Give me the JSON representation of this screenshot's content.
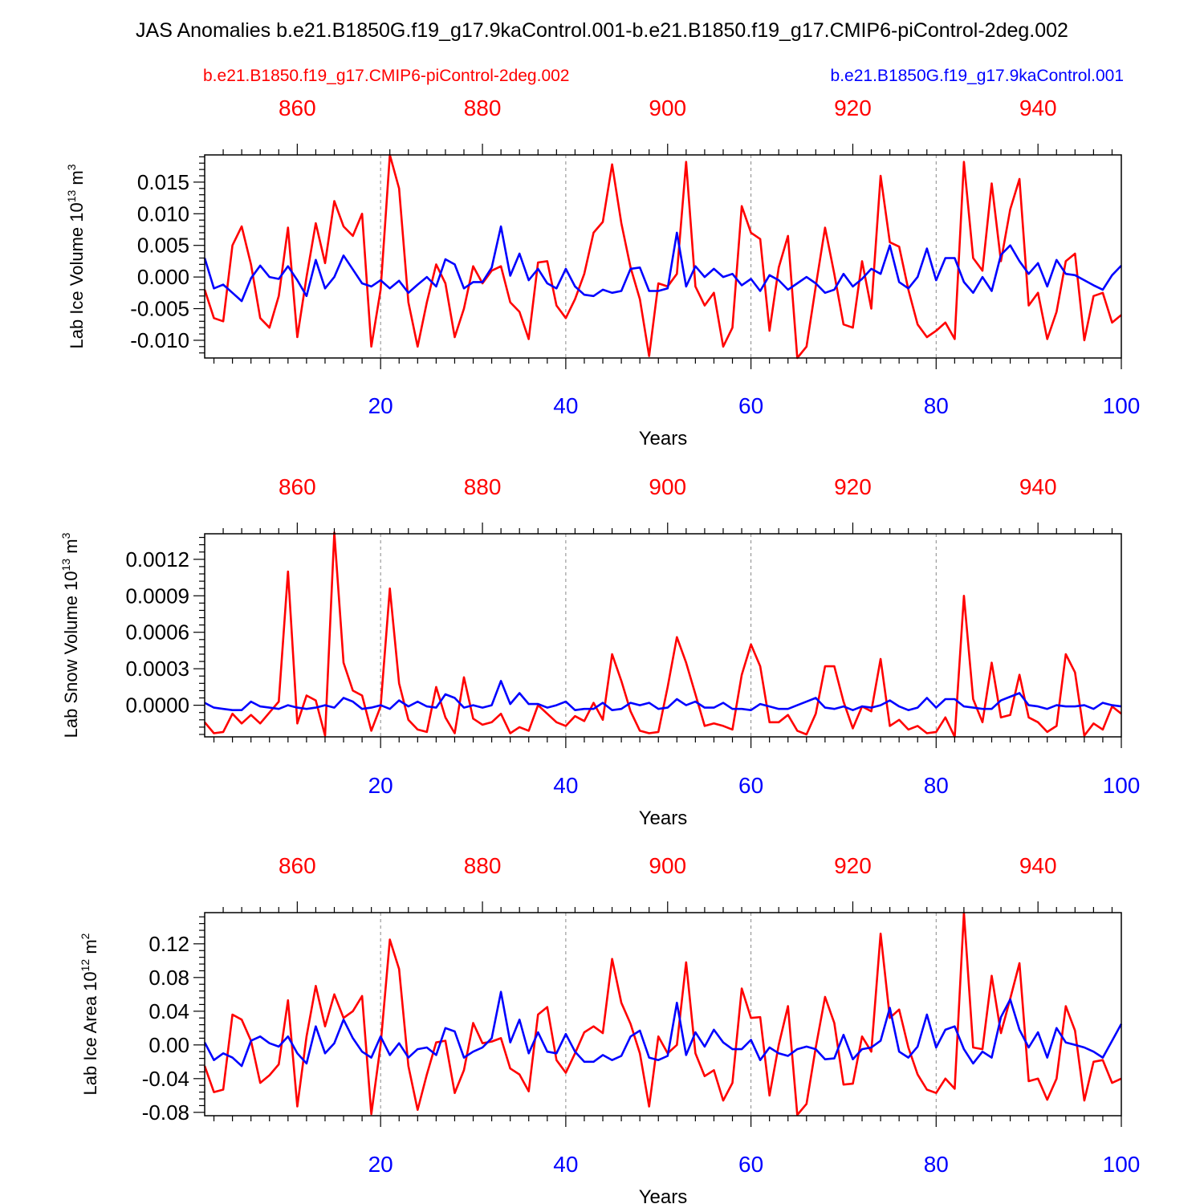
{
  "figure": {
    "title": "JAS Anomalies b.e21.B1850G.f19_g17.9kaControl.001-b.e21.B1850.f19_g17.CMIP6-piControl-2deg.002",
    "legend": [
      {
        "label": "b.e21.B1850.f19_g17.CMIP6-piControl-2deg.002",
        "color": "#ff0000"
      },
      {
        "label": "b.e21.B1850G.f19_g17.9kaControl.001",
        "color": "#0000ff"
      }
    ]
  },
  "chart_data": [
    {
      "type": "line",
      "title": "",
      "xlabel": "Years",
      "ylabel_main": "Lab Ice Volume 10",
      "ylabel_sup": "13",
      "ylabel_unit": " m",
      "ylabel_unit_sup": "3",
      "xlim": [
        1,
        100
      ],
      "ylim": [
        -0.0128,
        0.0193
      ],
      "x": [
        1,
        2,
        3,
        4,
        5,
        6,
        7,
        8,
        9,
        10,
        11,
        12,
        13,
        14,
        15,
        16,
        17,
        18,
        19,
        20,
        21,
        22,
        23,
        24,
        25,
        26,
        27,
        28,
        29,
        30,
        31,
        32,
        33,
        34,
        35,
        36,
        37,
        38,
        39,
        40,
        41,
        42,
        43,
        44,
        45,
        46,
        47,
        48,
        49,
        50,
        51,
        52,
        53,
        54,
        55,
        56,
        57,
        58,
        59,
        60,
        61,
        62,
        63,
        64,
        65,
        66,
        67,
        68,
        69,
        70,
        71,
        72,
        73,
        74,
        75,
        76,
        77,
        78,
        79,
        80,
        81,
        82,
        83,
        84,
        85,
        86,
        87,
        88,
        89,
        90,
        91,
        92,
        93,
        94,
        95,
        96,
        97,
        98,
        99,
        100
      ],
      "bottom_ticks": [
        "20",
        "40",
        "60",
        "80",
        "100"
      ],
      "top_ticks": [
        "860",
        "880",
        "900",
        "920",
        "940"
      ],
      "y_ticks": [
        "0.015",
        "0.010",
        "0.005",
        "0.000",
        "-0.005",
        "-0.010"
      ],
      "y_tick_values": [
        0.015,
        0.01,
        0.005,
        0.0,
        -0.005,
        -0.01
      ],
      "series": [
        {
          "name": "b.e21.B1850.f19_g17.CMIP6-piControl-2deg.002",
          "color": "#ff0000",
          "values": [
            -0.002,
            -0.0065,
            -0.007,
            0.005,
            0.008,
            0.002,
            -0.0065,
            -0.008,
            -0.003,
            0.0078,
            -0.0095,
            0.0,
            0.0085,
            0.0022,
            0.012,
            0.008,
            0.0065,
            0.01,
            -0.011,
            -0.002,
            0.0193,
            0.014,
            -0.004,
            -0.011,
            -0.004,
            0.002,
            -0.001,
            -0.0095,
            -0.005,
            0.0017,
            -0.001,
            0.001,
            0.0017,
            -0.004,
            -0.0055,
            -0.0098,
            0.0023,
            0.0025,
            -0.0045,
            -0.0065,
            -0.0035,
            0.0005,
            0.007,
            0.0087,
            0.0178,
            0.0085,
            0.0015,
            -0.0035,
            -0.0125,
            -0.001,
            -0.0015,
            0.0005,
            0.0182,
            -0.0015,
            -0.0045,
            -0.0025,
            -0.011,
            -0.008,
            0.0112,
            0.007,
            0.006,
            -0.0085,
            0.0015,
            0.0065,
            -0.0128,
            -0.011,
            -0.0015,
            0.0078,
            0.0005,
            -0.0075,
            -0.008,
            0.0025,
            -0.005,
            0.016,
            0.0055,
            0.0048,
            -0.002,
            -0.0075,
            -0.0095,
            -0.0085,
            -0.0072,
            -0.0098,
            0.0182,
            0.003,
            0.001,
            0.0148,
            0.0025,
            0.0107,
            0.0155,
            -0.0045,
            -0.0025,
            -0.0098,
            -0.0055,
            0.0025,
            0.0037,
            -0.01,
            -0.003,
            -0.0025,
            -0.0072,
            -0.006
          ]
        },
        {
          "name": "b.e21.B1850G.f19_g17.9kaControl.001",
          "color": "#0000ff",
          "values": [
            0.003,
            -0.0018,
            -0.0012,
            -0.0025,
            -0.0038,
            -0.0002,
            0.0018,
            0.0,
            -0.0003,
            0.0017,
            -0.0005,
            -0.003,
            0.0027,
            -0.0018,
            0.0,
            0.0034,
            0.0012,
            -0.001,
            -0.0015,
            -0.0005,
            -0.0018,
            -0.0006,
            -0.0025,
            -0.0012,
            0.0,
            -0.0015,
            0.0028,
            0.002,
            -0.0018,
            -0.0008,
            -0.0008,
            0.0015,
            0.008,
            0.0002,
            0.0037,
            -0.0005,
            0.0013,
            -0.001,
            -0.0018,
            0.0013,
            -0.0015,
            -0.0028,
            -0.003,
            -0.002,
            -0.0025,
            -0.0022,
            0.0013,
            0.0015,
            -0.0022,
            -0.0022,
            -0.0018,
            0.007,
            -0.0015,
            0.0017,
            0.0,
            0.0013,
            0.0,
            0.0005,
            -0.0013,
            -0.0003,
            -0.0022,
            0.0003,
            -0.0005,
            -0.002,
            -0.001,
            0.0,
            -0.001,
            -0.0025,
            -0.002,
            0.0005,
            -0.0015,
            -0.0003,
            0.0013,
            0.0005,
            0.005,
            -0.0008,
            -0.0018,
            0.0,
            0.0045,
            -0.0005,
            0.003,
            0.003,
            -0.0008,
            -0.0025,
            0.0,
            -0.0022,
            0.0035,
            0.005,
            0.0025,
            0.0005,
            0.0022,
            -0.0015,
            0.0027,
            0.0005,
            0.0003,
            -0.0005,
            -0.0013,
            -0.002,
            0.0003,
            0.0018
          ]
        }
      ]
    },
    {
      "type": "line",
      "title": "",
      "xlabel": "Years",
      "ylabel_main": "Lab Snow Volume 10",
      "ylabel_sup": "13",
      "ylabel_unit": " m",
      "ylabel_unit_sup": "3",
      "xlim": [
        1,
        100
      ],
      "ylim": [
        -0.00026,
        0.00141
      ],
      "x": [
        1,
        2,
        3,
        4,
        5,
        6,
        7,
        8,
        9,
        10,
        11,
        12,
        13,
        14,
        15,
        16,
        17,
        18,
        19,
        20,
        21,
        22,
        23,
        24,
        25,
        26,
        27,
        28,
        29,
        30,
        31,
        32,
        33,
        34,
        35,
        36,
        37,
        38,
        39,
        40,
        41,
        42,
        43,
        44,
        45,
        46,
        47,
        48,
        49,
        50,
        51,
        52,
        53,
        54,
        55,
        56,
        57,
        58,
        59,
        60,
        61,
        62,
        63,
        64,
        65,
        66,
        67,
        68,
        69,
        70,
        71,
        72,
        73,
        74,
        75,
        76,
        77,
        78,
        79,
        80,
        81,
        82,
        83,
        84,
        85,
        86,
        87,
        88,
        89,
        90,
        91,
        92,
        93,
        94,
        95,
        96,
        97,
        98,
        99,
        100
      ],
      "bottom_ticks": [
        "20",
        "40",
        "60",
        "80",
        "100"
      ],
      "top_ticks": [
        "860",
        "880",
        "900",
        "920",
        "940"
      ],
      "y_ticks": [
        "0.0012",
        "0.0009",
        "0.0006",
        "0.0003",
        "0.0000"
      ],
      "y_tick_values": [
        0.0012,
        0.0009,
        0.0006,
        0.0003,
        0.0
      ],
      "series": [
        {
          "name": "b.e21.B1850.f19_g17.CMIP6-piControl-2deg.002",
          "color": "#ff0000",
          "values": [
            -0.00014,
            -0.00023,
            -0.00022,
            -7e-05,
            -0.00015,
            -8e-05,
            -0.00015,
            -6e-05,
            3e-05,
            0.0011,
            -0.00015,
            8e-05,
            4e-05,
            -0.00025,
            0.00142,
            0.00035,
            0.00012,
            8e-05,
            -0.00021,
            -1e-05,
            0.00096,
            0.00018,
            -0.00012,
            -0.0002,
            -0.00022,
            0.00015,
            -0.0001,
            -0.00023,
            0.00023,
            -0.00011,
            -0.00016,
            -0.00014,
            -7e-05,
            -0.00023,
            -0.00018,
            -0.00021,
            0.0,
            -7e-05,
            -0.00014,
            -0.00017,
            -9e-05,
            -0.00013,
            2e-05,
            -0.00012,
            0.00042,
            0.0002,
            -5e-05,
            -0.00021,
            -0.00023,
            -0.00022,
            0.00015,
            0.00056,
            0.00035,
            9e-05,
            -0.00017,
            -0.00015,
            -0.00017,
            -0.0002,
            0.00025,
            0.0005,
            0.00032,
            -0.00014,
            -0.00014,
            -8e-05,
            -0.00021,
            -0.00024,
            -7e-05,
            0.00032,
            0.00032,
            3e-05,
            -0.00019,
            -1e-05,
            -5e-05,
            0.00038,
            -0.00017,
            -0.00012,
            -0.0002,
            -0.00017,
            -0.00023,
            -0.00022,
            -0.0001,
            -0.00026,
            0.0009,
            5e-05,
            -0.00014,
            0.00035,
            -0.0001,
            -8e-05,
            0.00025,
            -0.0001,
            -0.00014,
            -0.00022,
            -0.00017,
            0.00042,
            0.00027,
            -0.00025,
            -0.00015,
            -0.0002,
            -1e-05,
            -7e-05
          ]
        },
        {
          "name": "b.e21.B1850G.f19_g17.9kaControl.001",
          "color": "#0000ff",
          "values": [
            2e-05,
            -2e-05,
            -3e-05,
            -4e-05,
            -4e-05,
            3e-05,
            -1e-05,
            -2e-05,
            -3e-05,
            0.0,
            -2e-05,
            -3e-05,
            -2e-05,
            0.0,
            -2e-05,
            6e-05,
            3e-05,
            -3e-05,
            -2e-05,
            0.0,
            -3e-05,
            4e-05,
            -1e-05,
            3e-05,
            -1e-05,
            -2e-05,
            9e-05,
            6e-05,
            -2e-05,
            0.0,
            -2e-05,
            0.0,
            0.0002,
            1e-05,
            0.0001,
            1e-05,
            1e-05,
            -2e-05,
            0.0,
            3e-05,
            -4e-05,
            -3e-05,
            -3e-05,
            2e-05,
            -4e-05,
            -3e-05,
            2e-05,
            0.0,
            2e-05,
            -3e-05,
            -2e-05,
            5e-05,
            0.0,
            3e-05,
            -2e-05,
            -2e-05,
            2e-05,
            -3e-05,
            -3e-05,
            -4e-05,
            1e-05,
            -1e-05,
            -3e-05,
            -3e-05,
            0.0,
            3e-05,
            6e-05,
            -2e-05,
            -3e-05,
            -1e-05,
            -4e-05,
            -1e-05,
            -2e-05,
            0.0,
            4e-05,
            -1e-05,
            -4e-05,
            -2e-05,
            6e-05,
            -2e-05,
            5e-05,
            5e-05,
            -1e-05,
            -2e-05,
            -3e-05,
            -3e-05,
            4e-05,
            7e-05,
            0.0001,
            0.0,
            -1e-05,
            -3e-05,
            0.0,
            -1e-05,
            -1e-05,
            0.0,
            -3e-05,
            2e-05,
            0.0,
            -1e-05
          ]
        }
      ]
    },
    {
      "type": "line",
      "title": "",
      "xlabel": "Years",
      "ylabel_main": "Lab Ice Area 10",
      "ylabel_sup": "12",
      "ylabel_unit": " m",
      "ylabel_unit_sup": "2",
      "xlim": [
        1,
        100
      ],
      "ylim": [
        -0.084,
        0.157
      ],
      "x": [
        1,
        2,
        3,
        4,
        5,
        6,
        7,
        8,
        9,
        10,
        11,
        12,
        13,
        14,
        15,
        16,
        17,
        18,
        19,
        20,
        21,
        22,
        23,
        24,
        25,
        26,
        27,
        28,
        29,
        30,
        31,
        32,
        33,
        34,
        35,
        36,
        37,
        38,
        39,
        40,
        41,
        42,
        43,
        44,
        45,
        46,
        47,
        48,
        49,
        50,
        51,
        52,
        53,
        54,
        55,
        56,
        57,
        58,
        59,
        60,
        61,
        62,
        63,
        64,
        65,
        66,
        67,
        68,
        69,
        70,
        71,
        72,
        73,
        74,
        75,
        76,
        77,
        78,
        79,
        80,
        81,
        82,
        83,
        84,
        85,
        86,
        87,
        88,
        89,
        90,
        91,
        92,
        93,
        94,
        95,
        96,
        97,
        98,
        99,
        100
      ],
      "bottom_ticks": [
        "20",
        "40",
        "60",
        "80",
        "100"
      ],
      "top_ticks": [
        "860",
        "880",
        "900",
        "920",
        "940"
      ],
      "y_ticks": [
        "0.12",
        "0.08",
        "0.04",
        "0.00",
        "-0.04",
        "-0.08"
      ],
      "y_tick_values": [
        0.12,
        0.08,
        0.04,
        0.0,
        -0.04,
        -0.08
      ],
      "series": [
        {
          "name": "b.e21.B1850.f19_g17.CMIP6-piControl-2deg.002",
          "color": "#ff0000",
          "values": [
            -0.025,
            -0.056,
            -0.053,
            0.036,
            0.03,
            0.005,
            -0.045,
            -0.036,
            -0.023,
            0.053,
            -0.073,
            0.01,
            0.07,
            0.022,
            0.06,
            0.032,
            0.04,
            0.058,
            -0.082,
            0.0,
            0.125,
            0.09,
            -0.025,
            -0.077,
            -0.035,
            0.003,
            0.005,
            -0.057,
            -0.03,
            0.026,
            0.002,
            0.004,
            0.008,
            -0.028,
            -0.035,
            -0.055,
            0.036,
            0.045,
            -0.018,
            -0.033,
            -0.01,
            0.015,
            0.022,
            0.014,
            0.102,
            0.05,
            0.025,
            -0.01,
            -0.073,
            0.01,
            -0.01,
            0.0,
            0.098,
            -0.01,
            -0.037,
            -0.03,
            -0.066,
            -0.045,
            0.067,
            0.032,
            0.033,
            -0.06,
            0.0,
            0.046,
            -0.083,
            -0.07,
            -0.003,
            0.057,
            0.026,
            -0.047,
            -0.046,
            0.01,
            -0.008,
            0.132,
            0.032,
            0.042,
            -0.003,
            -0.035,
            -0.053,
            -0.057,
            -0.04,
            -0.052,
            0.157,
            -0.003,
            -0.005,
            0.082,
            0.014,
            0.055,
            0.097,
            -0.043,
            -0.04,
            -0.065,
            -0.04,
            0.046,
            0.017,
            -0.066,
            -0.02,
            -0.018,
            -0.045,
            -0.04
          ]
        },
        {
          "name": "b.e21.B1850G.f19_g17.9kaControl.001",
          "color": "#0000ff",
          "values": [
            0.003,
            -0.018,
            -0.01,
            -0.015,
            -0.025,
            0.005,
            0.01,
            0.002,
            -0.002,
            0.01,
            -0.01,
            -0.022,
            0.022,
            -0.01,
            0.002,
            0.03,
            0.008,
            -0.008,
            -0.015,
            0.01,
            -0.012,
            0.002,
            -0.015,
            -0.005,
            -0.003,
            -0.012,
            0.02,
            0.016,
            -0.015,
            -0.008,
            -0.003,
            0.008,
            0.063,
            0.003,
            0.03,
            -0.01,
            0.015,
            -0.008,
            -0.01,
            0.013,
            -0.008,
            -0.02,
            -0.02,
            -0.012,
            -0.018,
            -0.013,
            0.01,
            0.017,
            -0.015,
            -0.018,
            -0.013,
            0.05,
            -0.012,
            0.015,
            -0.002,
            0.018,
            0.003,
            -0.005,
            -0.005,
            0.006,
            -0.018,
            -0.003,
            -0.01,
            -0.013,
            -0.005,
            -0.002,
            -0.005,
            -0.017,
            -0.016,
            0.012,
            -0.017,
            -0.005,
            -0.003,
            0.005,
            0.044,
            -0.008,
            -0.015,
            -0.002,
            0.036,
            -0.003,
            0.018,
            0.022,
            -0.005,
            -0.022,
            -0.008,
            -0.015,
            0.033,
            0.054,
            0.018,
            -0.003,
            0.015,
            -0.015,
            0.02,
            0.003,
            0.0,
            -0.003,
            -0.008,
            -0.015,
            0.005,
            0.025
          ]
        }
      ]
    }
  ]
}
